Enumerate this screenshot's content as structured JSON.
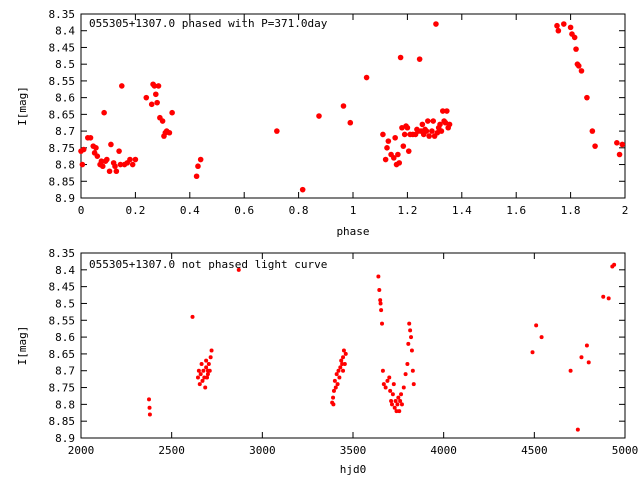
{
  "chart_data": [
    {
      "type": "scatter",
      "title": "055305+1307.0 phased with P=371.0day",
      "xlabel": "phase",
      "ylabel": "I[mag]",
      "xlim": [
        0,
        2
      ],
      "ylim": [
        8.9,
        8.35
      ],
      "y_inverted": true,
      "xticks": [
        "0",
        "0.2",
        "0.4",
        "0.6",
        "0.8",
        "1",
        "1.2",
        "1.4",
        "1.6",
        "1.8",
        "2"
      ],
      "yticks": [
        "8.35",
        "8.4",
        "8.45",
        "8.5",
        "8.55",
        "8.6",
        "8.65",
        "8.7",
        "8.75",
        "8.8",
        "8.85",
        "8.9"
      ],
      "marker_color": "#ff0000",
      "grid": false,
      "points": [
        [
          0.0,
          8.76
        ],
        [
          0.005,
          8.8
        ],
        [
          0.01,
          8.755
        ],
        [
          0.025,
          8.72
        ],
        [
          0.035,
          8.72
        ],
        [
          0.045,
          8.745
        ],
        [
          0.05,
          8.765
        ],
        [
          0.055,
          8.75
        ],
        [
          0.06,
          8.775
        ],
        [
          0.07,
          8.8
        ],
        [
          0.075,
          8.79
        ],
        [
          0.08,
          8.805
        ],
        [
          0.085,
          8.645
        ],
        [
          0.09,
          8.79
        ],
        [
          0.095,
          8.785
        ],
        [
          0.105,
          8.82
        ],
        [
          0.11,
          8.74
        ],
        [
          0.12,
          8.795
        ],
        [
          0.125,
          8.805
        ],
        [
          0.13,
          8.82
        ],
        [
          0.14,
          8.76
        ],
        [
          0.145,
          8.8
        ],
        [
          0.15,
          8.565
        ],
        [
          0.16,
          8.8
        ],
        [
          0.17,
          8.795
        ],
        [
          0.18,
          8.785
        ],
        [
          0.19,
          8.8
        ],
        [
          0.2,
          8.785
        ],
        [
          0.24,
          8.6
        ],
        [
          0.26,
          8.62
        ],
        [
          0.265,
          8.56
        ],
        [
          0.27,
          8.565
        ],
        [
          0.275,
          8.59
        ],
        [
          0.28,
          8.615
        ],
        [
          0.285,
          8.565
        ],
        [
          0.29,
          8.66
        ],
        [
          0.3,
          8.67
        ],
        [
          0.305,
          8.715
        ],
        [
          0.31,
          8.705
        ],
        [
          0.315,
          8.7
        ],
        [
          0.325,
          8.705
        ],
        [
          0.335,
          8.645
        ],
        [
          0.425,
          8.835
        ],
        [
          0.43,
          8.805
        ],
        [
          0.44,
          8.785
        ],
        [
          0.72,
          8.7
        ],
        [
          0.815,
          8.875
        ],
        [
          0.875,
          8.655
        ],
        [
          0.965,
          8.625
        ],
        [
          0.99,
          8.675
        ],
        [
          1.05,
          8.54
        ],
        [
          1.11,
          8.71
        ],
        [
          1.12,
          8.785
        ],
        [
          1.125,
          8.75
        ],
        [
          1.13,
          8.73
        ],
        [
          1.14,
          8.77
        ],
        [
          1.15,
          8.78
        ],
        [
          1.155,
          8.72
        ],
        [
          1.16,
          8.8
        ],
        [
          1.165,
          8.77
        ],
        [
          1.17,
          8.795
        ],
        [
          1.175,
          8.48
        ],
        [
          1.18,
          8.69
        ],
        [
          1.185,
          8.745
        ],
        [
          1.19,
          8.71
        ],
        [
          1.195,
          8.685
        ],
        [
          1.2,
          8.69
        ],
        [
          1.205,
          8.76
        ],
        [
          1.21,
          8.71
        ],
        [
          1.22,
          8.71
        ],
        [
          1.23,
          8.71
        ],
        [
          1.235,
          8.695
        ],
        [
          1.24,
          8.7
        ],
        [
          1.245,
          8.485
        ],
        [
          1.25,
          8.7
        ],
        [
          1.255,
          8.68
        ],
        [
          1.26,
          8.71
        ],
        [
          1.265,
          8.695
        ],
        [
          1.27,
          8.7
        ],
        [
          1.275,
          8.67
        ],
        [
          1.28,
          8.715
        ],
        [
          1.29,
          8.7
        ],
        [
          1.295,
          8.67
        ],
        [
          1.3,
          8.715
        ],
        [
          1.305,
          8.38
        ],
        [
          1.31,
          8.705
        ],
        [
          1.315,
          8.69
        ],
        [
          1.32,
          8.68
        ],
        [
          1.325,
          8.7
        ],
        [
          1.33,
          8.64
        ],
        [
          1.335,
          8.67
        ],
        [
          1.34,
          8.675
        ],
        [
          1.345,
          8.64
        ],
        [
          1.35,
          8.69
        ],
        [
          1.355,
          8.68
        ],
        [
          1.75,
          8.385
        ],
        [
          1.755,
          8.4
        ],
        [
          1.775,
          8.38
        ],
        [
          1.8,
          8.39
        ],
        [
          1.805,
          8.41
        ],
        [
          1.815,
          8.42
        ],
        [
          1.82,
          8.455
        ],
        [
          1.825,
          8.5
        ],
        [
          1.83,
          8.505
        ],
        [
          1.84,
          8.52
        ],
        [
          1.86,
          8.6
        ],
        [
          1.88,
          8.7
        ],
        [
          1.89,
          8.745
        ],
        [
          1.97,
          8.735
        ],
        [
          1.98,
          8.77
        ],
        [
          1.99,
          8.74
        ]
      ]
    },
    {
      "type": "scatter",
      "title": "055305+1307.0 not phased light curve",
      "xlabel": "hjd0",
      "ylabel": "I[mag]",
      "xlim": [
        2000,
        5000
      ],
      "ylim": [
        8.9,
        8.35
      ],
      "y_inverted": true,
      "xticks": [
        "2000",
        "2500",
        "3000",
        "3500",
        "4000",
        "4500",
        "5000"
      ],
      "yticks": [
        "8.35",
        "8.4",
        "8.45",
        "8.5",
        "8.55",
        "8.6",
        "8.65",
        "8.7",
        "8.75",
        "8.8",
        "8.85",
        "8.9"
      ],
      "marker_color": "#ff0000",
      "grid": false,
      "points": [
        [
          2375,
          8.785
        ],
        [
          2378,
          8.81
        ],
        [
          2380,
          8.83
        ],
        [
          2615,
          8.54
        ],
        [
          2870,
          8.4
        ],
        [
          2645,
          8.72
        ],
        [
          2650,
          8.7
        ],
        [
          2655,
          8.74
        ],
        [
          2660,
          8.71
        ],
        [
          2665,
          8.68
        ],
        [
          2670,
          8.73
        ],
        [
          2675,
          8.7
        ],
        [
          2680,
          8.72
        ],
        [
          2685,
          8.75
        ],
        [
          2690,
          8.69
        ],
        [
          2695,
          8.72
        ],
        [
          2700,
          8.71
        ],
        [
          2705,
          8.68
        ],
        [
          2710,
          8.7
        ],
        [
          2715,
          8.66
        ],
        [
          2720,
          8.64
        ],
        [
          2690,
          8.67
        ],
        [
          2700,
          8.7
        ],
        [
          3385,
          8.795
        ],
        [
          3390,
          8.78
        ],
        [
          3395,
          8.76
        ],
        [
          3400,
          8.73
        ],
        [
          3405,
          8.75
        ],
        [
          3410,
          8.71
        ],
        [
          3415,
          8.74
        ],
        [
          3420,
          8.7
        ],
        [
          3425,
          8.72
        ],
        [
          3430,
          8.69
        ],
        [
          3435,
          8.67
        ],
        [
          3440,
          8.68
        ],
        [
          3445,
          8.66
        ],
        [
          3450,
          8.64
        ],
        [
          3455,
          8.68
        ],
        [
          3460,
          8.65
        ],
        [
          3392,
          8.8
        ],
        [
          3445,
          8.7
        ],
        [
          3640,
          8.42
        ],
        [
          3645,
          8.46
        ],
        [
          3650,
          8.49
        ],
        [
          3652,
          8.5
        ],
        [
          3655,
          8.52
        ],
        [
          3660,
          8.56
        ],
        [
          3665,
          8.7
        ],
        [
          3670,
          8.74
        ],
        [
          3680,
          8.75
        ],
        [
          3690,
          8.73
        ],
        [
          3700,
          8.72
        ],
        [
          3705,
          8.76
        ],
        [
          3710,
          8.79
        ],
        [
          3715,
          8.8
        ],
        [
          3720,
          8.77
        ],
        [
          3725,
          8.74
        ],
        [
          3730,
          8.81
        ],
        [
          3735,
          8.79
        ],
        [
          3740,
          8.82
        ],
        [
          3745,
          8.8
        ],
        [
          3750,
          8.78
        ],
        [
          3755,
          8.82
        ],
        [
          3760,
          8.79
        ],
        [
          3765,
          8.77
        ],
        [
          3770,
          8.8
        ],
        [
          3780,
          8.75
        ],
        [
          3790,
          8.71
        ],
        [
          3800,
          8.68
        ],
        [
          3805,
          8.62
        ],
        [
          3810,
          8.56
        ],
        [
          3815,
          8.58
        ],
        [
          3820,
          8.6
        ],
        [
          3825,
          8.64
        ],
        [
          3830,
          8.7
        ],
        [
          3835,
          8.74
        ],
        [
          4490,
          8.645
        ],
        [
          4510,
          8.565
        ],
        [
          4540,
          8.6
        ],
        [
          4700,
          8.7
        ],
        [
          4740,
          8.875
        ],
        [
          4760,
          8.66
        ],
        [
          4790,
          8.625
        ],
        [
          4800,
          8.675
        ],
        [
          4880,
          8.48
        ],
        [
          4910,
          8.485
        ],
        [
          4930,
          8.39
        ],
        [
          4940,
          8.385
        ]
      ]
    }
  ]
}
